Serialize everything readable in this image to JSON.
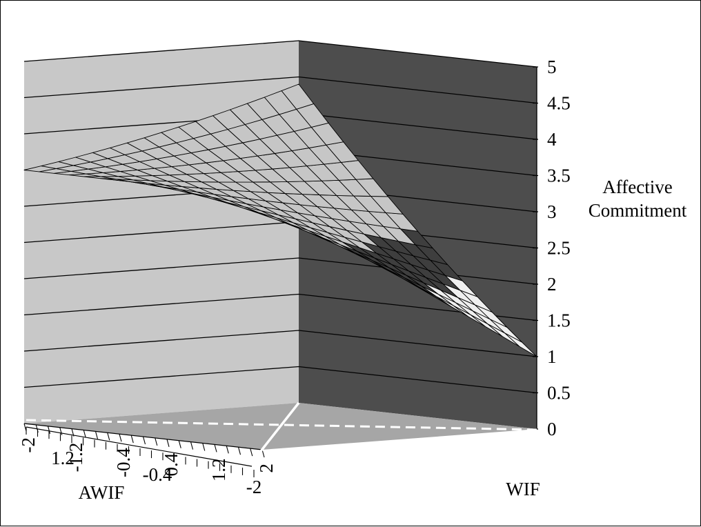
{
  "chart_data": {
    "type": "surface3d",
    "title": "",
    "zlabel_line1": "Affective",
    "zlabel_line2": "Commitment",
    "xlabel": "WIF",
    "ylabel": "AWIF",
    "zlim": [
      0,
      5
    ],
    "z_ticks": [
      "0",
      "0.5",
      "1",
      "1.5",
      "2",
      "2.5",
      "3",
      "3.5",
      "4",
      "4.5",
      "5"
    ],
    "wif_ticks": [
      "-2",
      "-1.2",
      "-0.4",
      "0.4",
      "1.2",
      "2"
    ],
    "awif_ticks": [
      "1.2",
      "-0.4",
      "-2"
    ],
    "wif_range": [
      -2,
      2
    ],
    "awif_range": [
      -2,
      2
    ],
    "grid": true,
    "surface_corners": [
      {
        "WIF": -2,
        "AWIF": -2,
        "value": 4.4
      },
      {
        "WIF": 2,
        "AWIF": -2,
        "value": 1.0
      },
      {
        "WIF": -2,
        "AWIF": 2,
        "value": 3.5
      },
      {
        "WIF": 2,
        "AWIF": 2,
        "value": 3.5
      }
    ],
    "colors": {
      "left_wall": "#c8c8c8",
      "right_wall": "#4d4d4d",
      "floor": "#a6a6a6",
      "surface_light": "#c6c6c6",
      "surface_band_dark": "#3e3e3e",
      "surface_band_pale": "#efefef",
      "grid_line": "#000000",
      "reference_line": "#ffffff"
    }
  }
}
